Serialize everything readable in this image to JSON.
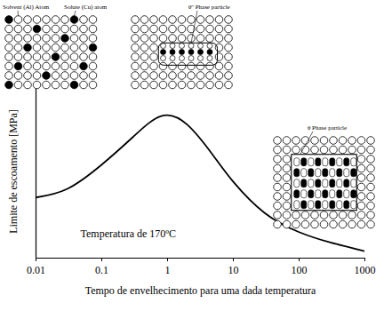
{
  "chart_data": {
    "type": "line",
    "x": [
      0.01,
      0.03,
      0.1,
      0.3,
      0.8,
      2,
      5,
      10,
      30,
      100,
      300,
      1000
    ],
    "values": [
      35,
      40,
      54,
      70,
      82,
      77,
      59,
      44,
      26,
      15,
      9,
      4
    ],
    "color": "#000000",
    "xlabel": "Tempo de envelhecimento para uma dada temperatura",
    "ylabel": "Limite de escoamento [MPa]",
    "xlim": [
      0.01,
      1000
    ],
    "xticks": [
      0.01,
      0.1,
      1,
      10,
      100,
      1000
    ],
    "ylim": [
      0,
      100
    ],
    "yticks": [],
    "log": "x",
    "grid": false,
    "tick_labels": "x",
    "annotations": {
      "temperature": "Temperatura de 170ºC",
      "solvent_atom": "Solvent (Al) Atom",
      "solute_atom": "Solute (Cu) atom",
      "theta_double_prime": "θ'' Phase particle",
      "theta": "θ Phase particle"
    }
  }
}
